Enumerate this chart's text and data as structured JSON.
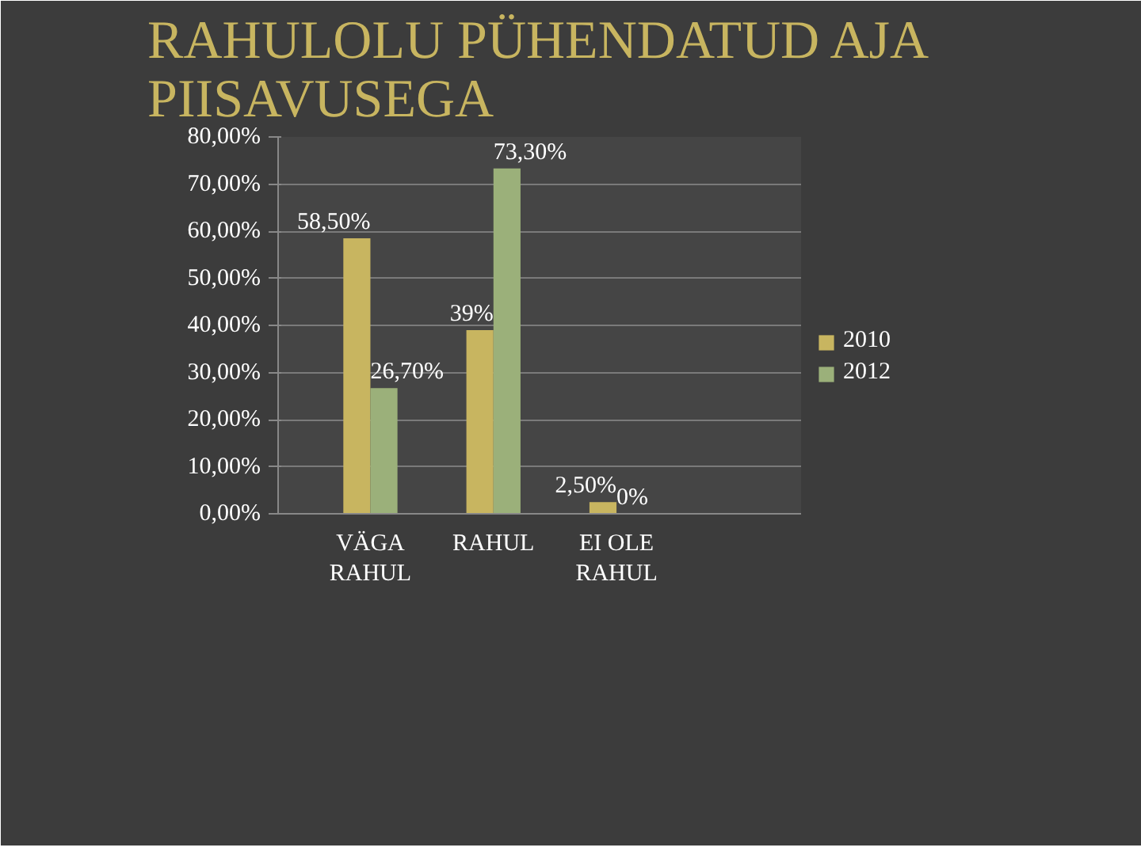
{
  "chart_data": {
    "type": "bar",
    "title": "RAHULOLU PÜHENDATUD AJA PIISAVUSEGA",
    "categories": [
      "VÄGA RAHUL",
      "RAHUL",
      "EI OLE RAHUL",
      null
    ],
    "series": [
      {
        "name": "2010",
        "color": "#c8b560",
        "values": [
          58.5,
          39,
          2.5,
          null
        ],
        "value_labels": [
          "58,50%",
          "39%",
          "2,50%",
          null
        ]
      },
      {
        "name": "2012",
        "color": "#9bb07a",
        "values": [
          26.7,
          73.3,
          0,
          null
        ],
        "value_labels": [
          "26,70%",
          "73,30%",
          "0%",
          null
        ]
      }
    ],
    "ylim": [
      0,
      80
    ],
    "yticks": [
      {
        "value": 0,
        "label": "0,00%"
      },
      {
        "value": 10,
        "label": "10,00%"
      },
      {
        "value": 20,
        "label": "20,00%"
      },
      {
        "value": 30,
        "label": "30,00%"
      },
      {
        "value": 40,
        "label": "40,00%"
      },
      {
        "value": 50,
        "label": "50,00%"
      },
      {
        "value": 60,
        "label": "60,00%"
      },
      {
        "value": 70,
        "label": "70,00%"
      },
      {
        "value": 80,
        "label": "80,00%"
      }
    ],
    "grid": "y",
    "legend": "right"
  }
}
